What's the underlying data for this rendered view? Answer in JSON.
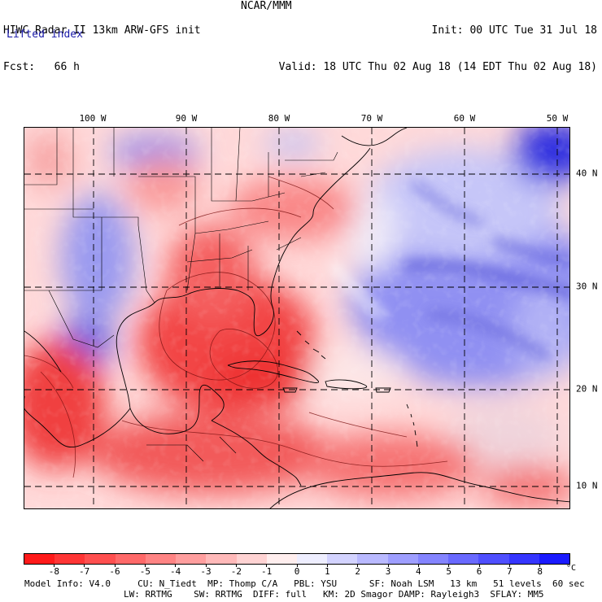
{
  "header": {
    "left_line1": "HIWC Radar II 13km ARW-GFS init",
    "left_line2": "Fcst:   66 h",
    "middle": "NCAR/MMM",
    "right_line1": "Init: 00 UTC Tue 31 Jul 18",
    "right_line2": "Valid: 18 UTC Thu 02 Aug 18 (14 EDT Thu 02 Aug 18)",
    "field": "Lifted index"
  },
  "map": {
    "lon_labels": [
      "100 W",
      "90 W",
      "80 W",
      "70 W",
      "60 W",
      "50 W"
    ],
    "lat_labels": [
      "40 N",
      "30 N",
      "20 N",
      "10 N"
    ]
  },
  "colorbar": {
    "labels": [
      "-8",
      "-7",
      "-6",
      "-5",
      "-4",
      "-3",
      "-2",
      "-1",
      "0",
      "1",
      "2",
      "3",
      "4",
      "5",
      "6",
      "7",
      "8"
    ],
    "unit": "°C",
    "colors": [
      "#ff1a1a",
      "#ff3535",
      "#ff4f4f",
      "#ff6969",
      "#ff8484",
      "#ff9e9e",
      "#ffb9b9",
      "#ffd3d3",
      "#ffeeee",
      "#eeeeff",
      "#d3d3ff",
      "#b9b9ff",
      "#9e9eff",
      "#8484ff",
      "#6969ff",
      "#4f4fff",
      "#3535ff",
      "#1a1aff"
    ]
  },
  "footer": {
    "line1": "Model Info: V4.0     CU: N_Tiedt  MP: Thomp C/A   PBL: YSU      SF: Noah LSM   13 km   51 levels  60 sec",
    "line2": "LW: RRTMG    SW: RRTMG  DIFF: full   KM: 2D Smagor DAMP: Rayleigh3  SFLAY: MM5"
  }
}
